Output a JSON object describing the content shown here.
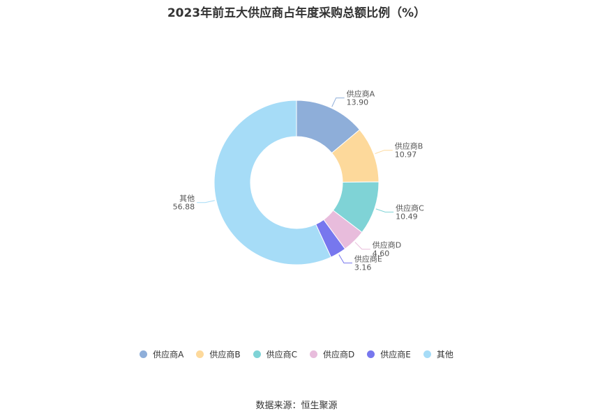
{
  "chart_data": {
    "type": "pie",
    "title": "2023年前五大供应商占年度采购总额比例（%）",
    "labels": [
      "供应商A",
      "供应商B",
      "供应商C",
      "供应商D",
      "供应商E",
      "其他"
    ],
    "values": [
      13.9,
      10.97,
      10.49,
      4.6,
      3.16,
      56.88
    ],
    "value_labels": [
      "13.90",
      "10.97",
      "10.49",
      "4.60",
      "3.16",
      "56.88"
    ],
    "colors": [
      "#8eaed9",
      "#fdd99b",
      "#7fd3d6",
      "#e8bcdc",
      "#7777ee",
      "#a6dcf7"
    ],
    "donut": true,
    "legend": "bottom"
  },
  "source": "数据来源：恒生聚源"
}
